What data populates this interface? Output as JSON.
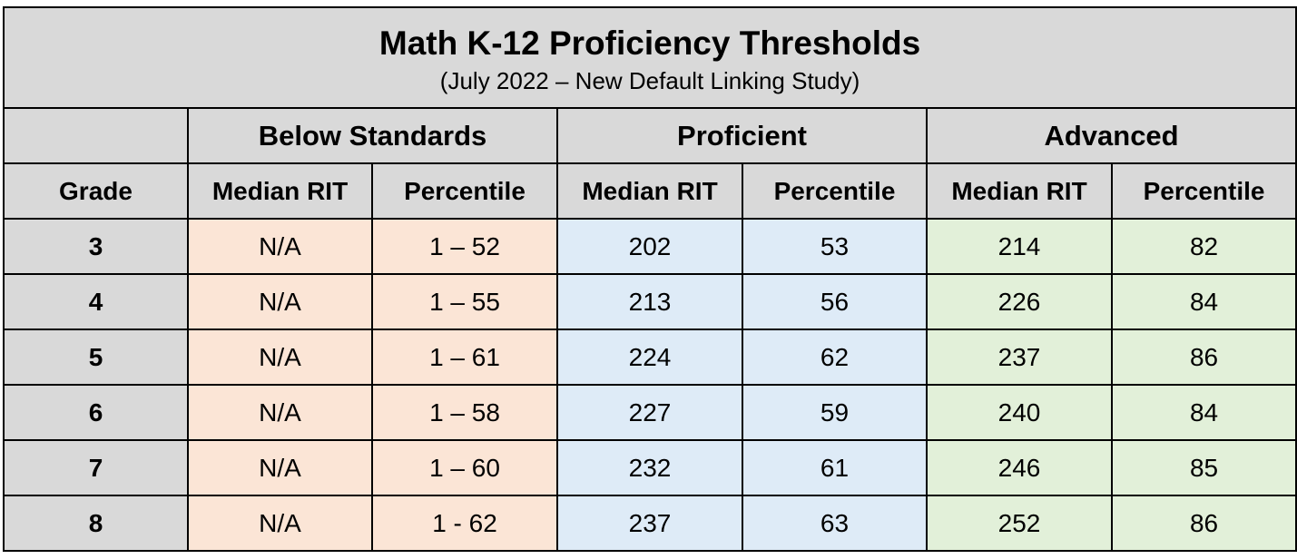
{
  "chart_data": {
    "type": "table",
    "title": "Math K-12 Proficiency Thresholds",
    "subtitle": "(July 2022 – New Default Linking Study)",
    "groups": [
      "Below Standards",
      "Proficient",
      "Advanced"
    ],
    "columns": [
      "Grade",
      "Median RIT",
      "Percentile",
      "Median RIT",
      "Percentile",
      "Median RIT",
      "Percentile"
    ],
    "rows": [
      {
        "grade": "3",
        "below_rit": "N/A",
        "below_pct": "1 – 52",
        "prof_rit": "202",
        "prof_pct": "53",
        "adv_rit": "214",
        "adv_pct": "82"
      },
      {
        "grade": "4",
        "below_rit": "N/A",
        "below_pct": "1 – 55",
        "prof_rit": "213",
        "prof_pct": "56",
        "adv_rit": "226",
        "adv_pct": "84"
      },
      {
        "grade": "5",
        "below_rit": "N/A",
        "below_pct": "1 – 61",
        "prof_rit": "224",
        "prof_pct": "62",
        "adv_rit": "237",
        "adv_pct": "86"
      },
      {
        "grade": "6",
        "below_rit": "N/A",
        "below_pct": "1 – 58",
        "prof_rit": "227",
        "prof_pct": "59",
        "adv_rit": "240",
        "adv_pct": "84"
      },
      {
        "grade": "7",
        "below_rit": "N/A",
        "below_pct": "1 – 60",
        "prof_rit": "232",
        "prof_pct": "61",
        "adv_rit": "246",
        "adv_pct": "85"
      },
      {
        "grade": "8",
        "below_rit": "N/A",
        "below_pct": "1 - 62",
        "prof_rit": "237",
        "prof_pct": "63",
        "adv_rit": "252",
        "adv_pct": "86"
      }
    ],
    "colors": {
      "header": "#d9d9d9",
      "below_standards": "#fbe5d6",
      "proficient": "#deebf7",
      "advanced": "#e2f0d9"
    }
  }
}
